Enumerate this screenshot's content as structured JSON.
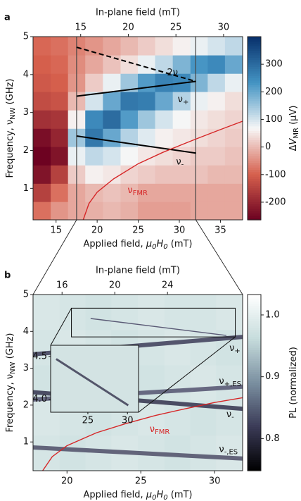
{
  "chart_data": [
    {
      "type": "heatmap",
      "panel": "a",
      "x2label": "In-plane field (mT)",
      "xlabel": [
        {
          "text": "Applied field, "
        },
        {
          "text": "μ",
          "style": "italic"
        },
        {
          "text": "0",
          "style": "italic sub"
        },
        {
          "text": "H",
          "style": "italic"
        },
        {
          "text": "0",
          "style": "italic sub"
        },
        {
          "text": " (mT)"
        }
      ],
      "ylabel": [
        {
          "text": "Frequency, ν"
        },
        {
          "text": "NW",
          "style": "sub"
        },
        {
          "text": " (GHz)"
        }
      ],
      "xlim": [
        12.2,
        37.7
      ],
      "xticks": [
        15,
        20,
        25,
        30,
        35
      ],
      "x2lim": [
        10,
        32
      ],
      "x2ticks": [
        15,
        20,
        25,
        30
      ],
      "ylim": [
        0.17,
        5
      ],
      "yticks": [
        1,
        2,
        3,
        4,
        5
      ],
      "heatmap": {
        "x": [
          13.3,
          15.4,
          17.5,
          19.6,
          21.8,
          23.9,
          26.0,
          28.1,
          30.3,
          32.4,
          34.5,
          36.6
        ],
        "y": [
          0.41,
          0.89,
          1.37,
          1.86,
          2.34,
          2.82,
          3.31,
          3.79,
          4.27,
          4.76
        ],
        "z": [
          [
            -80,
            -40,
            -20,
            -10,
            0,
            -10,
            -30,
            -30,
            -30,
            -20,
            -20,
            -20
          ],
          [
            -150,
            -80,
            -20,
            0,
            10,
            0,
            -20,
            -20,
            -20,
            -20,
            -20,
            -20
          ],
          [
            -230,
            -150,
            20,
            60,
            50,
            30,
            20,
            10,
            10,
            10,
            0,
            0
          ],
          [
            -260,
            -230,
            80,
            120,
            100,
            70,
            50,
            40,
            30,
            20,
            20,
            10
          ],
          [
            -240,
            -200,
            150,
            280,
            200,
            130,
            90,
            60,
            50,
            40,
            30,
            20
          ],
          [
            -180,
            -170,
            60,
            250,
            300,
            220,
            150,
            100,
            70,
            50,
            40,
            30
          ],
          [
            -130,
            -120,
            0,
            100,
            200,
            280,
            270,
            200,
            130,
            80,
            60,
            40
          ],
          [
            -110,
            -100,
            -40,
            20,
            80,
            150,
            220,
            260,
            250,
            180,
            120,
            80
          ],
          [
            -100,
            -90,
            -50,
            -20,
            10,
            40,
            80,
            120,
            180,
            230,
            250,
            200
          ],
          [
            -90,
            -80,
            -60,
            -40,
            -20,
            0,
            20,
            40,
            60,
            80,
            100,
            120
          ]
        ],
        "zlim": [
          -264,
          400
        ],
        "zticks": [
          -200,
          -100,
          0,
          100,
          200,
          300
        ],
        "colormap": [
          "#6a0020",
          "#d6604d",
          "#f7f7f7",
          "#4393c3",
          "#08306b"
        ],
        "zlabel": [
          {
            "text": "Δ"
          },
          {
            "text": "V",
            "style": "italic"
          },
          {
            "text": "MR",
            "style": "sub"
          },
          {
            "text": " (μV)"
          }
        ]
      },
      "vlines": [
        17.5,
        32
      ],
      "vline_color": "#444444",
      "series": [
        {
          "x": [
            17.5,
            32
          ],
          "values": [
            4.72,
            3.82
          ],
          "color": "#000000",
          "style": "dashed"
        },
        {
          "x": [
            17.5,
            32
          ],
          "values": [
            3.43,
            3.82
          ],
          "color": "#000000",
          "style": "solid"
        },
        {
          "x": [
            17.5,
            32
          ],
          "values": [
            2.38,
            1.93
          ],
          "color": "#000000",
          "style": "solid"
        },
        {
          "x": [
            18.3,
            19,
            20,
            22,
            25,
            28,
            32,
            35,
            37.7
          ],
          "values": [
            0.17,
            0.6,
            0.9,
            1.25,
            1.65,
            1.95,
            2.3,
            2.55,
            2.77
          ],
          "color": "#d62728",
          "style": "thin"
        }
      ],
      "annotations": [
        {
          "text": "2ν",
          "x": 28.5,
          "y": 4.05
        },
        {
          "text": "ν",
          "sub": "+",
          "x": 29.8,
          "y": 3.35
        },
        {
          "text": "ν",
          "sub": "-",
          "x": 29.6,
          "y": 1.7
        },
        {
          "text": "ν",
          "sub": "FMR",
          "x": 23.7,
          "y": 0.95,
          "color": "#d62728"
        }
      ]
    },
    {
      "type": "heatmap",
      "panel": "b",
      "x2label": "In-plane field (mT)",
      "xlabel": [
        {
          "text": "Applied field, "
        },
        {
          "text": "μ",
          "style": "italic"
        },
        {
          "text": "0",
          "style": "italic sub"
        },
        {
          "text": "H",
          "style": "italic"
        },
        {
          "text": "0",
          "style": "italic sub"
        },
        {
          "text": " (mT)"
        }
      ],
      "ylabel": [
        {
          "text": "Frequency, ν"
        },
        {
          "text": "NW",
          "style": "sub"
        },
        {
          "text": " (GHz)"
        }
      ],
      "xlim": [
        17.7,
        31.9
      ],
      "xticks": [
        20,
        25,
        30
      ],
      "x2lim": [
        13.8,
        29.7
      ],
      "x2ticks": [
        16,
        20,
        24
      ],
      "ylim": [
        0.22,
        5
      ],
      "yticks": [
        1,
        2,
        3,
        4,
        5
      ],
      "heatmap": {
        "x": [
          18.6,
          20.4,
          22.1,
          23.9,
          25.7,
          27.5,
          29.2,
          31.0
        ],
        "y": [
          0.7,
          1.66,
          2.61,
          3.57,
          4.52
        ],
        "z": [
          [
            0.98,
            0.975,
            0.98,
            0.985,
            0.98,
            0.975,
            0.98,
            0.985
          ],
          [
            0.985,
            0.98,
            0.975,
            0.98,
            0.985,
            0.98,
            0.975,
            0.98
          ],
          [
            0.975,
            0.98,
            0.985,
            0.98,
            0.975,
            0.98,
            0.985,
            0.98
          ],
          [
            0.98,
            0.985,
            0.98,
            0.975,
            0.98,
            0.985,
            0.98,
            0.975
          ],
          [
            0.985,
            0.98,
            0.975,
            0.98,
            0.985,
            0.98,
            0.98,
            0.985
          ]
        ],
        "zlim": [
          0.748,
          1.033
        ],
        "zticks": [
          0.8,
          0.9,
          {
            "value": 1,
            "label": "1.0"
          }
        ],
        "colormap": [
          "#000000",
          "#3a3a56",
          "#7a8fa0",
          "#c6dcdc",
          "#ffffff"
        ],
        "zlabel": [
          {
            "text": "PL (normalized)"
          }
        ]
      },
      "series": [
        {
          "x": [
            17.7,
            31.9
          ],
          "values": [
            3.38,
            3.85
          ],
          "color": "#45455f",
          "style": "band"
        },
        {
          "x": [
            17.7,
            31.9
          ],
          "values": [
            2.15,
            2.5
          ],
          "color": "#5a5a75",
          "style": "band"
        },
        {
          "x": [
            17.7,
            31.9
          ],
          "values": [
            2.35,
            1.9
          ],
          "color": "#3c3c55",
          "style": "band"
        },
        {
          "x": [
            17.7,
            31.9
          ],
          "values": [
            0.85,
            0.55
          ],
          "color": "#55556e",
          "style": "band"
        },
        {
          "x": [
            21.6,
            30.8
          ],
          "values": [
            4.35,
            3.89
          ],
          "color": "#5a5a75",
          "style": "thin"
        },
        {
          "x": [
            18.35,
            19,
            20,
            22,
            24,
            26,
            28,
            30,
            31.9
          ],
          "values": [
            0.22,
            0.6,
            0.9,
            1.25,
            1.5,
            1.72,
            1.9,
            2.07,
            2.2
          ],
          "color": "#d62728",
          "style": "thin"
        }
      ],
      "annotations": [
        {
          "text": "ν",
          "sub": "+",
          "x": 31.0,
          "y": 3.55
        },
        {
          "text": "ν",
          "sub": "+,ES",
          "x": 30.3,
          "y": 2.65
        },
        {
          "text": "ν",
          "sub": "-",
          "x": 30.8,
          "y": 1.75
        },
        {
          "text": "ν",
          "sub": "-,ES",
          "x": 30.3,
          "y": 0.8
        },
        {
          "text": "ν",
          "sub": "FMR",
          "x": 25.6,
          "y": 1.35,
          "color": "#d62728"
        }
      ],
      "inset": {
        "xlim": [
          20.3,
          31.4
        ],
        "xticks": [
          25,
          30
        ],
        "ylim": [
          3.85,
          4.63
        ],
        "yticks": [
          {
            "value": 4,
            "label": "4.0"
          },
          4.5
        ],
        "series": [
          {
            "x": [
              21.0,
              30.1
            ],
            "values": [
              4.47,
              3.93
            ],
            "color": "#3c3c55"
          }
        ]
      }
    }
  ]
}
